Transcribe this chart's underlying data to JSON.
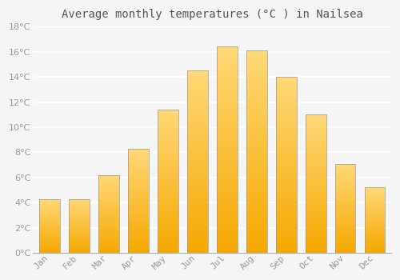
{
  "title": "Average monthly temperatures (°C ) in Nailsea",
  "months": [
    "Jan",
    "Feb",
    "Mar",
    "Apr",
    "May",
    "Jun",
    "Jul",
    "Aug",
    "Sep",
    "Oct",
    "Nov",
    "Dec"
  ],
  "temperatures": [
    4.3,
    4.3,
    6.2,
    8.3,
    11.4,
    14.5,
    16.4,
    16.1,
    14.0,
    11.0,
    7.1,
    5.2
  ],
  "bar_color_bottom": "#F5A800",
  "bar_color_top": "#FFD878",
  "bar_edge_color": "#999999",
  "background_color": "#F5F5F5",
  "grid_color": "#FFFFFF",
  "text_color": "#999999",
  "title_color": "#555555",
  "ylim": [
    0,
    18
  ],
  "yticks": [
    0,
    2,
    4,
    6,
    8,
    10,
    12,
    14,
    16,
    18
  ],
  "title_fontsize": 10,
  "tick_fontsize": 8,
  "bar_width": 0.7,
  "figsize": [
    5.0,
    3.5
  ],
  "dpi": 100
}
